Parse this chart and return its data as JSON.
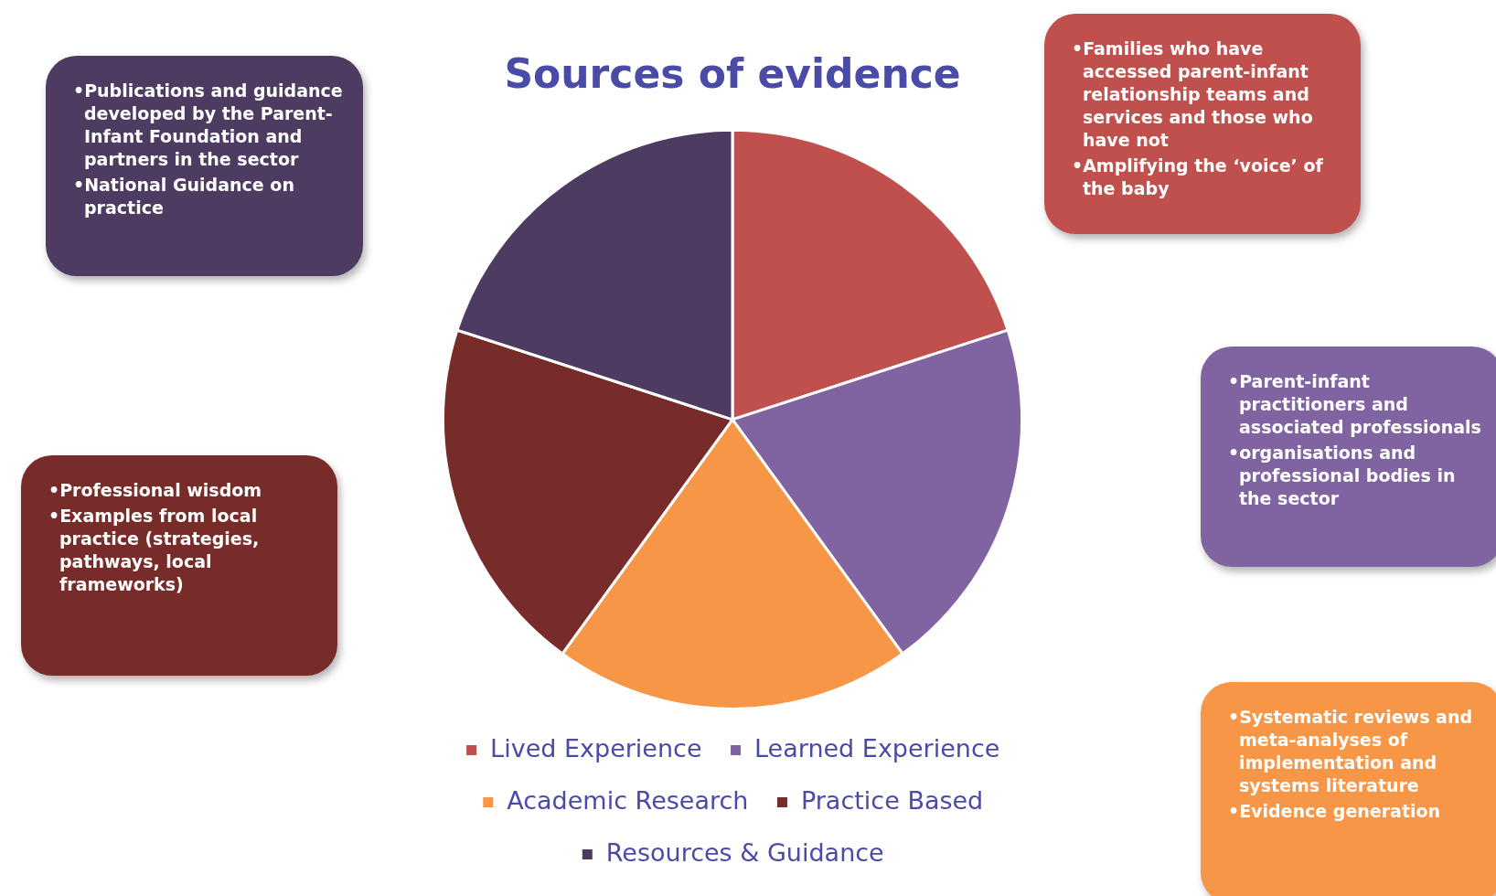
{
  "chart_data": {
    "type": "pie",
    "title": "Sources of evidence",
    "categories": [
      "Lived Experience",
      "Learned Experience",
      "Academic Research",
      "Practice Based",
      "Resources & Guidance"
    ],
    "values": [
      20,
      20,
      20,
      20,
      20
    ],
    "colors": [
      "#c0504d",
      "#8064a2",
      "#f79646",
      "#772c2a",
      "#4d3b62"
    ],
    "legend": "bottom",
    "annotations": [
      "•Families who have accessed parent-infant relationship teams and services and those who have not\n•Amplifying the ‘voice’ of the baby",
      "•Parent-infant practitioners and associated professionals\n•organisations and professional bodies in the sector",
      "•Systematic reviews and meta-analyses of implementation and systems literature\n•Evidence generation",
      "•Professional wisdom\n•Examples from local practice (strategies, pathways, local frameworks)",
      "•Publications and guidance developed by the Parent-Infant Foundation and partners in the sector\n•National Guidance on practice"
    ]
  }
}
